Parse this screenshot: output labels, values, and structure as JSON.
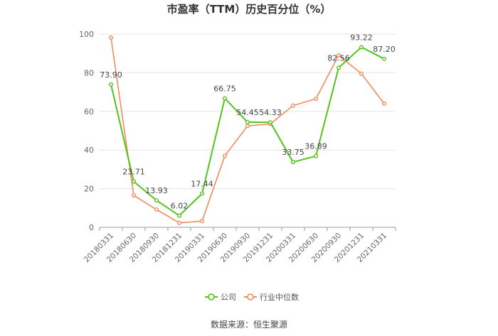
{
  "chart_data": {
    "type": "line",
    "title": "市盈率（TTM）历史百分位（%）",
    "source": "数据来源：恒生聚源",
    "categories": [
      "20180331",
      "20180630",
      "20180930",
      "20181231",
      "20190331",
      "20190630",
      "20190930",
      "20191231",
      "20200331",
      "20200630",
      "20200930",
      "20201231",
      "20210331"
    ],
    "ylim": [
      0,
      100
    ],
    "yticks": [
      0,
      20,
      40,
      60,
      80,
      100
    ],
    "grid": true,
    "legend_position": "bottom",
    "series": [
      {
        "name": "公司",
        "color": "#52c41a",
        "values": [
          73.9,
          23.71,
          13.93,
          6.02,
          17.44,
          66.75,
          54.45,
          54.33,
          33.75,
          36.89,
          82.56,
          93.22,
          87.2
        ],
        "labels": [
          "73.90",
          "23.71",
          "13.93",
          "6.02",
          "17.44",
          "66.75",
          "54.45",
          "54.33",
          "33.75",
          "36.89",
          "82.56",
          "93.22",
          "87.20"
        ]
      },
      {
        "name": "行业中位数",
        "color": "#f08c5a",
        "values": [
          98.2,
          16.5,
          9.2,
          2.3,
          3.2,
          37.0,
          52.5,
          53.5,
          63.0,
          66.5,
          89.0,
          79.5,
          64.0
        ]
      }
    ]
  }
}
